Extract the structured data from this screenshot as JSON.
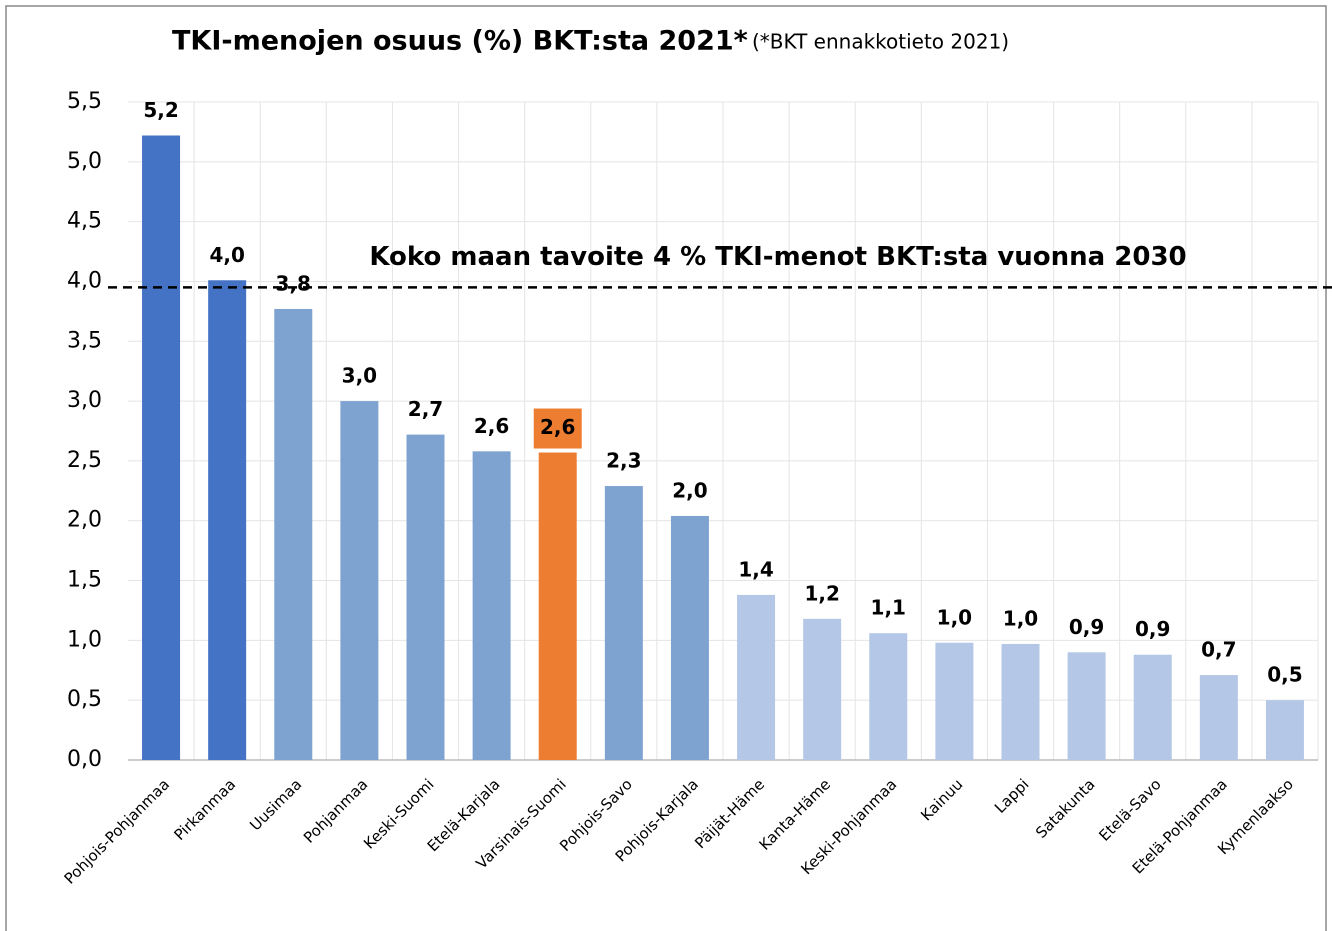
{
  "chart_data": {
    "type": "bar",
    "title": "TKI-menojen osuus (%) BKT:sta 2021*",
    "subtitle": "(*BKT ennakkotieto 2021)",
    "categories": [
      "Pohjois-Pohjanmaa",
      "Pirkanmaa",
      "Uusimaa",
      "Pohjanmaa",
      "Keski-Suomi",
      "Etelä-Karjala",
      "Varsinais-Suomi",
      "Pohjois-Savo",
      "Pohjois-Karjala",
      "Päijät-Häme",
      "Kanta-Häme",
      "Keski-Pohjanmaa",
      "Kainuu",
      "Lappi",
      "Satakunta",
      "Etelä-Savo",
      "Etelä-Pohjanmaa",
      "Kymenlaakso"
    ],
    "values": [
      5.22,
      4.01,
      3.77,
      3.0,
      2.72,
      2.58,
      2.57,
      2.29,
      2.04,
      1.38,
      1.18,
      1.06,
      0.98,
      0.97,
      0.9,
      0.88,
      0.71,
      0.5
    ],
    "value_labels": [
      "5,2",
      "4,0",
      "3,8",
      "3,0",
      "2,7",
      "2,6",
      "2,6",
      "2,3",
      "2,0",
      "1,4",
      "1,2",
      "1,1",
      "1,0",
      "1,0",
      "0,9",
      "0,9",
      "0,7",
      "0,5"
    ],
    "colors": [
      "#4472c4",
      "#4472c4",
      "#7fa3d0",
      "#7fa3d0",
      "#7fa3d0",
      "#7fa3d0",
      "#ed7d31",
      "#7fa3d0",
      "#7fa3d0",
      "#b4c7e7",
      "#b4c7e7",
      "#b4c7e7",
      "#b4c7e7",
      "#b4c7e7",
      "#b4c7e7",
      "#b4c7e7",
      "#b4c7e7",
      "#b4c7e7"
    ],
    "ylim": [
      0,
      5.5
    ],
    "yticks": [
      {
        "value": 0,
        "label": "0,0"
      },
      {
        "value": 0.5,
        "label": "0,5"
      },
      {
        "value": 1,
        "label": "1,0"
      },
      {
        "value": 1.5,
        "label": "1,5"
      },
      {
        "value": 2,
        "label": "2,0"
      },
      {
        "value": 2.5,
        "label": "2,5"
      },
      {
        "value": 3,
        "label": "3,0"
      },
      {
        "value": 3.5,
        "label": "3,5"
      },
      {
        "value": 4,
        "label": "4,0"
      },
      {
        "value": 4.5,
        "label": "4,5"
      },
      {
        "value": 5,
        "label": "5,0"
      },
      {
        "value": 5.5,
        "label": "5,5"
      }
    ],
    "grid": true,
    "reference_line": {
      "value": 3.95,
      "label": "Koko maan tavoite 4 % TKI-menot BKT:sta vuonna 2030"
    }
  }
}
